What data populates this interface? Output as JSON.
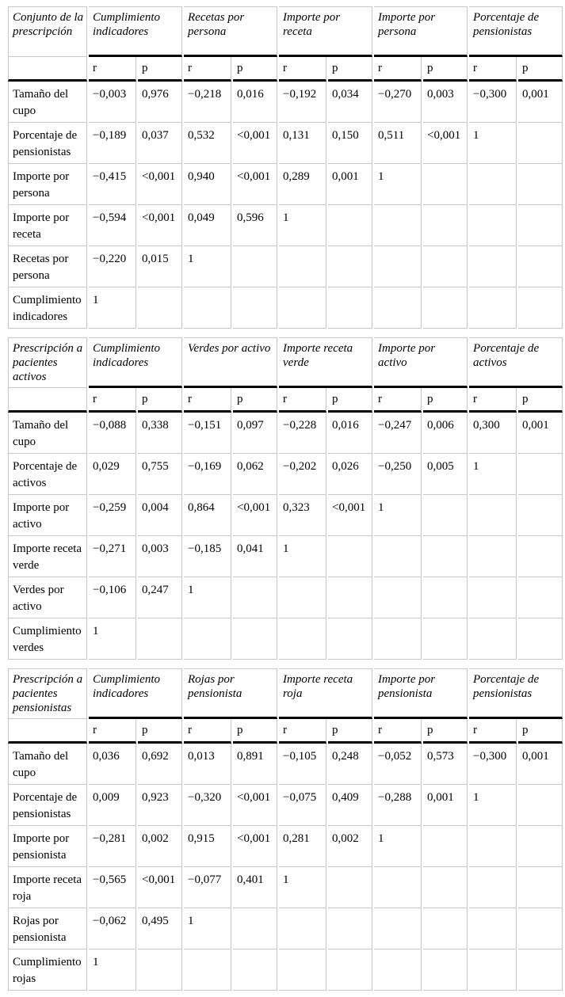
{
  "colors": {
    "background": "#ffffff",
    "text": "#000000",
    "border_light": "#c8c8c8",
    "border_strong": "#000000"
  },
  "tables": [
    {
      "corner_label": "Conjunto de la prescripción",
      "groups": [
        "Cumplimiento indicadores",
        "Recetas por persona",
        "Importe por receta",
        "Importe por persona",
        "Porcentaje de pensionistas"
      ],
      "subheaders": [
        "r",
        "p",
        "r",
        "p",
        "r",
        "p",
        "r",
        "p",
        "r",
        "p"
      ],
      "rows": [
        {
          "label": "Tamaño del cupo",
          "values": [
            "−0,003",
            "0,976",
            "−0,218",
            "0,016",
            "−0,192",
            "0,034",
            "−0,270",
            "0,003",
            "−0,300",
            "0,001"
          ]
        },
        {
          "label": "Porcentaje de pensionistas",
          "values": [
            "−0,189",
            "0,037",
            "0,532",
            "<0,001",
            "0,131",
            "0,150",
            "0,511",
            "<0,001",
            "1",
            ""
          ]
        },
        {
          "label": "Importe por persona",
          "values": [
            "−0,415",
            "<0,001",
            "0,940",
            "<0,001",
            "0,289",
            "0,001",
            "1",
            "",
            "",
            ""
          ]
        },
        {
          "label": "Importe por receta",
          "values": [
            "−0,594",
            "<0,001",
            "0,049",
            "0,596",
            "1",
            "",
            "",
            "",
            "",
            ""
          ]
        },
        {
          "label": "Recetas por persona",
          "values": [
            "−0,220",
            "0,015",
            "1",
            "",
            "",
            "",
            "",
            "",
            "",
            ""
          ]
        },
        {
          "label": "Cumplimiento indicadores",
          "values": [
            "1",
            "",
            "",
            "",
            "",
            "",
            "",
            "",
            "",
            ""
          ]
        }
      ]
    },
    {
      "corner_label": "Prescripción a pacientes activos",
      "groups": [
        "Cumplimiento indicadores",
        "Verdes por activo",
        "Importe receta verde",
        "Importe por activo",
        "Porcentaje de activos"
      ],
      "subheaders": [
        "r",
        "p",
        "r",
        "p",
        "r",
        "p",
        "r",
        "p",
        "r",
        "p"
      ],
      "rows": [
        {
          "label": "Tamaño del cupo",
          "values": [
            "−0,088",
            "0,338",
            "−0,151",
            "0,097",
            "−0,228",
            "0,016",
            "−0,247",
            "0,006",
            "0,300",
            "0,001"
          ]
        },
        {
          "label": "Porcentaje de activos",
          "values": [
            "0,029",
            "0,755",
            "−0,169",
            "0,062",
            "−0,202",
            "0,026",
            "−0,250",
            "0,005",
            "1",
            ""
          ]
        },
        {
          "label": "Importe por activo",
          "values": [
            "−0,259",
            "0,004",
            "0,864",
            "<0,001",
            "0,323",
            "<0,001",
            "1",
            "",
            "",
            ""
          ]
        },
        {
          "label": "Importe receta verde",
          "values": [
            "−0,271",
            "0,003",
            "−0,185",
            "0,041",
            "1",
            "",
            "",
            "",
            "",
            ""
          ]
        },
        {
          "label": "Verdes por activo",
          "values": [
            "−0,106",
            "0,247",
            "1",
            "",
            "",
            "",
            "",
            "",
            "",
            ""
          ]
        },
        {
          "label": "Cumplimiento verdes",
          "values": [
            "1",
            "",
            "",
            "",
            "",
            "",
            "",
            "",
            "",
            ""
          ]
        }
      ]
    },
    {
      "corner_label": "Prescripción a pacientes pensionistas",
      "groups": [
        "Cumplimiento indicadores",
        "Rojas por pensionista",
        "Importe receta roja",
        "Importe por pensionista",
        "Porcentaje de pensionistas"
      ],
      "subheaders": [
        "r",
        "p",
        "r",
        "p",
        "r",
        "p",
        "r",
        "p",
        "r",
        "p"
      ],
      "rows": [
        {
          "label": "Tamaño del cupo",
          "values": [
            "0,036",
            "0,692",
            "0,013",
            "0,891",
            "−0,105",
            "0,248",
            "−0,052",
            "0,573",
            "−0,300",
            "0,001"
          ]
        },
        {
          "label": "Porcentaje de pensionistas",
          "values": [
            "0,009",
            "0,923",
            "−0,320",
            "<0,001",
            "−0,075",
            "0,409",
            "−0,288",
            "0,001",
            "1",
            ""
          ]
        },
        {
          "label": "Importe por pensionista",
          "values": [
            "−0,281",
            "0,002",
            "0,915",
            "<0,001",
            "0,281",
            "0,002",
            "1",
            "",
            "",
            ""
          ]
        },
        {
          "label": "Importe receta roja",
          "values": [
            "−0,565",
            "<0,001",
            "−0,077",
            "0,401",
            "1",
            "",
            "",
            "",
            "",
            ""
          ]
        },
        {
          "label": "Rojas por pensionista",
          "values": [
            "−0,062",
            "0,495",
            "1",
            "",
            "",
            "",
            "",
            "",
            "",
            ""
          ]
        },
        {
          "label": "Cumplimiento rojas",
          "values": [
            "1",
            "",
            "",
            "",
            "",
            "",
            "",
            "",
            "",
            ""
          ]
        }
      ]
    }
  ]
}
